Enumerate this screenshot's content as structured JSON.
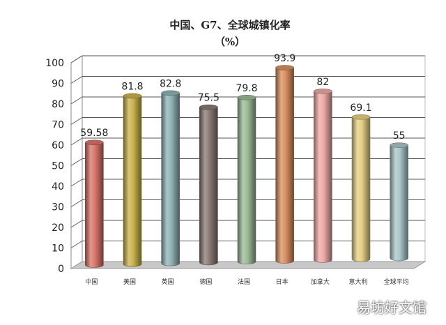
{
  "chart_data": {
    "type": "bar",
    "title": "中国、G7、全球城镇化率",
    "subtitle": "（%）",
    "categories": [
      "中国",
      "美国",
      "英国",
      "德国",
      "法国",
      "日本",
      "加拿大",
      "意大利",
      "全球平均"
    ],
    "values": [
      59.58,
      81.8,
      82.8,
      75.5,
      79.8,
      93.9,
      82,
      69.1,
      55
    ],
    "value_labels": [
      "59.58",
      "81.8",
      "82.8",
      "75.5",
      "79.8",
      "93.9",
      "82",
      "69.1",
      "55"
    ],
    "ylim": [
      0,
      100
    ],
    "yticks": [
      "0",
      "10",
      "20",
      "30",
      "40",
      "50",
      "60",
      "70",
      "80",
      "90",
      "100"
    ],
    "grid": true,
    "style": "3d-cylinder",
    "colors": [
      "#d9756a",
      "#c9b24c",
      "#8fb3b5",
      "#8a7a76",
      "#9bbb96",
      "#d99060",
      "#ecaaa6",
      "#e6d083",
      "#a9c6ca"
    ]
  },
  "watermark": "易坊好文馆"
}
